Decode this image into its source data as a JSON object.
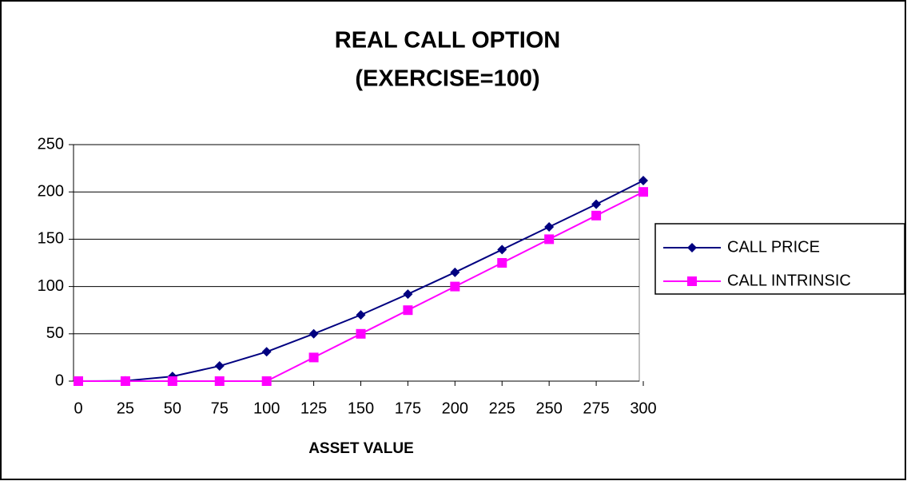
{
  "chart_data": {
    "type": "line",
    "title": "REAL CALL OPTION",
    "subtitle": "(EXERCISE=100)",
    "x_label": "ASSET VALUE",
    "x": [
      0,
      25,
      50,
      75,
      100,
      125,
      150,
      175,
      200,
      225,
      250,
      275,
      300
    ],
    "xlim": [
      0,
      300
    ],
    "xticks": [
      0,
      25,
      50,
      75,
      100,
      125,
      150,
      175,
      200,
      225,
      250,
      275,
      300
    ],
    "ylim": [
      0,
      250
    ],
    "yticks": [
      0,
      50,
      100,
      150,
      200,
      250
    ],
    "grid": true,
    "legend": "right",
    "series": [
      {
        "name": "CALL PRICE",
        "color": "#000080",
        "marker": "diamond",
        "values": [
          0,
          0.3,
          5,
          16,
          31,
          50,
          70,
          92,
          115,
          139,
          163,
          187,
          212
        ]
      },
      {
        "name": "CALL INTRINSIC",
        "color": "#ff00ff",
        "marker": "square",
        "values": [
          0,
          0,
          0,
          0,
          0,
          25,
          50,
          75,
          100,
          125,
          150,
          175,
          200
        ]
      }
    ]
  }
}
